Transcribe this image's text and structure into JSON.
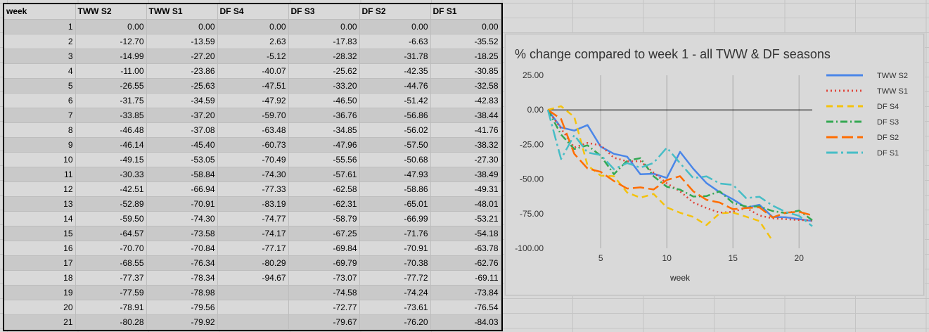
{
  "table": {
    "headers": [
      "week",
      "TWW S2",
      "TWW S1",
      "DF S4",
      "DF S3",
      "DF S2",
      "DF S1"
    ],
    "rows": [
      [
        "1",
        "0.00",
        "0.00",
        "0.00",
        "0.00",
        "0.00",
        "0.00"
      ],
      [
        "2",
        "-12.70",
        "-13.59",
        "2.63",
        "-17.83",
        "-6.63",
        "-35.52"
      ],
      [
        "3",
        "-14.99",
        "-27.20",
        "-5.12",
        "-28.32",
        "-31.78",
        "-18.25"
      ],
      [
        "4",
        "-11.00",
        "-23.86",
        "-40.07",
        "-25.62",
        "-42.35",
        "-30.85"
      ],
      [
        "5",
        "-26.55",
        "-25.63",
        "-47.51",
        "-33.20",
        "-44.76",
        "-32.58"
      ],
      [
        "6",
        "-31.75",
        "-34.59",
        "-47.92",
        "-46.50",
        "-51.42",
        "-42.83"
      ],
      [
        "7",
        "-33.85",
        "-37.20",
        "-59.70",
        "-36.76",
        "-56.86",
        "-38.44"
      ],
      [
        "8",
        "-46.48",
        "-37.08",
        "-63.48",
        "-34.85",
        "-56.02",
        "-41.76"
      ],
      [
        "9",
        "-46.14",
        "-45.40",
        "-60.73",
        "-47.96",
        "-57.50",
        "-38.32"
      ],
      [
        "10",
        "-49.15",
        "-53.05",
        "-70.49",
        "-55.56",
        "-50.68",
        "-27.30"
      ],
      [
        "11",
        "-30.33",
        "-58.84",
        "-74.30",
        "-57.61",
        "-47.93",
        "-38.49"
      ],
      [
        "12",
        "-42.51",
        "-66.94",
        "-77.33",
        "-62.58",
        "-58.86",
        "-49.31"
      ],
      [
        "13",
        "-52.89",
        "-70.91",
        "-83.19",
        "-62.31",
        "-65.01",
        "-48.01"
      ],
      [
        "14",
        "-59.50",
        "-74.30",
        "-74.77",
        "-58.79",
        "-66.99",
        "-53.21"
      ],
      [
        "15",
        "-64.57",
        "-73.58",
        "-74.17",
        "-67.25",
        "-71.76",
        "-54.18"
      ],
      [
        "16",
        "-70.70",
        "-70.84",
        "-77.17",
        "-69.84",
        "-70.91",
        "-63.78"
      ],
      [
        "17",
        "-68.55",
        "-76.34",
        "-80.29",
        "-69.79",
        "-70.38",
        "-62.76"
      ],
      [
        "18",
        "-77.37",
        "-78.34",
        "-94.67",
        "-73.07",
        "-77.72",
        "-69.11"
      ],
      [
        "19",
        "-77.59",
        "-78.98",
        "",
        "-74.58",
        "-74.24",
        "-73.84"
      ],
      [
        "20",
        "-78.91",
        "-79.56",
        "",
        "-72.77",
        "-73.61",
        "-76.54"
      ],
      [
        "21",
        "-80.28",
        "-79.92",
        "",
        "-79.67",
        "-76.20",
        "-84.03"
      ]
    ]
  },
  "chart_data": {
    "type": "line",
    "title": "% change compared to week 1 - all TWW & DF seasons",
    "xlabel": "week",
    "ylabel": "",
    "x_ticks": [
      "5",
      "10",
      "15",
      "20"
    ],
    "y_ticks": [
      "25.00",
      "0.00",
      "-25.00",
      "-50.00",
      "-75.00",
      "-100.00"
    ],
    "xlim": [
      1,
      21
    ],
    "ylim": [
      -100,
      25
    ],
    "grid": "vertical lines at x ticks; horizontal line at y = 0",
    "legend_position": "right",
    "x": [
      1,
      2,
      3,
      4,
      5,
      6,
      7,
      8,
      9,
      10,
      11,
      12,
      13,
      14,
      15,
      16,
      17,
      18,
      19,
      20,
      21
    ],
    "series": [
      {
        "name": "TWW S2",
        "color": "#4a86e8",
        "dash": "solid",
        "values": [
          0.0,
          -12.7,
          -14.99,
          -11.0,
          -26.55,
          -31.75,
          -33.85,
          -46.48,
          -46.14,
          -49.15,
          -30.33,
          -42.51,
          -52.89,
          -59.5,
          -64.57,
          -70.7,
          -68.55,
          -77.37,
          -77.59,
          -78.91,
          -80.28
        ]
      },
      {
        "name": "TWW S1",
        "color": "#e0453a",
        "dash": "dot",
        "values": [
          0.0,
          -13.59,
          -27.2,
          -23.86,
          -25.63,
          -34.59,
          -37.2,
          -37.08,
          -45.4,
          -53.05,
          -58.84,
          -66.94,
          -70.91,
          -74.3,
          -73.58,
          -70.84,
          -76.34,
          -78.34,
          -78.98,
          -79.56,
          -79.92
        ]
      },
      {
        "name": "DF S4",
        "color": "#f4c20d",
        "dash": "dash",
        "values": [
          0.0,
          2.63,
          -5.12,
          -40.07,
          -47.51,
          -47.92,
          -59.7,
          -63.48,
          -60.73,
          -70.49,
          -74.3,
          -77.33,
          -83.19,
          -74.77,
          -74.17,
          -77.17,
          -80.29,
          -94.67,
          null,
          null,
          null
        ]
      },
      {
        "name": "DF S3",
        "color": "#34a853",
        "dash": "dashdot",
        "values": [
          0.0,
          -17.83,
          -28.32,
          -25.62,
          -33.2,
          -46.5,
          -36.76,
          -34.85,
          -47.96,
          -55.56,
          -57.61,
          -62.58,
          -62.31,
          -58.79,
          -67.25,
          -69.84,
          -69.79,
          -73.07,
          -74.58,
          -72.77,
          -79.67
        ]
      },
      {
        "name": "DF S2",
        "color": "#ff6d01",
        "dash": "longdash",
        "values": [
          0.0,
          -6.63,
          -31.78,
          -42.35,
          -44.76,
          -51.42,
          -56.86,
          -56.02,
          -57.5,
          -50.68,
          -47.93,
          -58.86,
          -65.01,
          -66.99,
          -71.76,
          -70.91,
          -70.38,
          -77.72,
          -74.24,
          -73.61,
          -76.2
        ]
      },
      {
        "name": "DF S1",
        "color": "#46bdc6",
        "dash": "longdashdot",
        "values": [
          0.0,
          -35.52,
          -18.25,
          -30.85,
          -32.58,
          -42.83,
          -38.44,
          -41.76,
          -38.32,
          -27.3,
          -38.49,
          -49.31,
          -48.01,
          -53.21,
          -54.18,
          -63.78,
          -62.76,
          -69.11,
          -73.84,
          -76.54,
          -84.03
        ]
      }
    ]
  }
}
